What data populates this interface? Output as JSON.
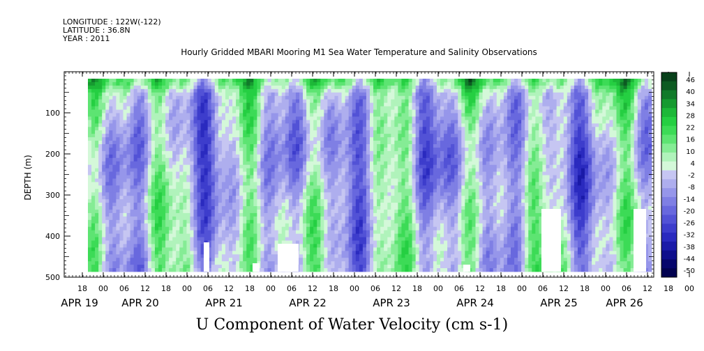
{
  "header": {
    "longitude": "LONGITUDE : 122W(-122)",
    "latitude": "LATITUDE : 36.8N",
    "year": "YEAR : 2011"
  },
  "chart_data": {
    "type": "heatmap",
    "title": "Hourly Gridded MBARI Mooring M1 Sea Water Temperature and Salinity Observations",
    "xlabel": "U Component of Water Velocity (cm s-1)",
    "ylabel": "DEPTH (m)",
    "ylim": [
      500,
      0
    ],
    "y_ticks": [
      100,
      200,
      300,
      400,
      500
    ],
    "x_hour_ticks": [
      "18",
      "00",
      "06",
      "12",
      "18",
      "00",
      "06",
      "12",
      "18",
      "00",
      "06",
      "12",
      "18",
      "00",
      "06",
      "12",
      "18",
      "00",
      "06",
      "12",
      "18",
      "00",
      "06",
      "12",
      "18",
      "00",
      "06",
      "12",
      "18",
      "00",
      "06",
      "12"
    ],
    "x_date_labels": [
      "APR 19",
      "APR 20",
      "APR 21",
      "APR 22",
      "APR 23",
      "APR 24",
      "APR 25",
      "APR 26"
    ],
    "colorbar": {
      "levels": [
        46,
        40,
        34,
        28,
        22,
        16,
        10,
        4,
        -2,
        -8,
        -14,
        -20,
        -26,
        -32,
        -38,
        -44,
        -50
      ],
      "colors_top_to_bottom": [
        "#08401a",
        "#0d5a22",
        "#117a2a",
        "#169a30",
        "#1db838",
        "#25cf42",
        "#3cdb56",
        "#5de472",
        "#85ec95",
        "#b0f3bb",
        "#d4f8d9",
        "#c6c6f2",
        "#aeaeee",
        "#9696ea",
        "#7f7fe4",
        "#6868de",
        "#5252d6",
        "#3d3dcc",
        "#2a2abf",
        "#1a1aa8",
        "#0e0e8c",
        "#06066c",
        "#020250"
      ]
    },
    "grid": false,
    "legend": "colorbar right"
  }
}
